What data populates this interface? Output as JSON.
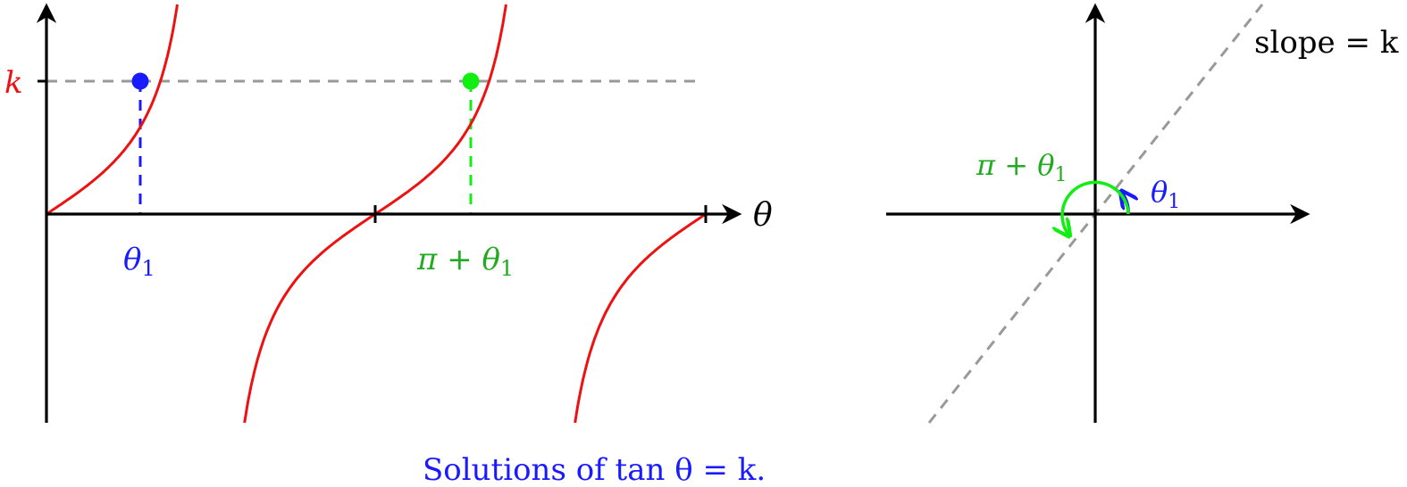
{
  "colors": {
    "axis": "#000000",
    "curve": "#ee1111",
    "dashed_gray": "#999999",
    "blue": "#1a1aff",
    "green": "#11ee11",
    "green_text": "#22aa22",
    "k_label": "#ee1111"
  },
  "left_plot": {
    "k_label": "k",
    "theta_axis_label": "θ",
    "theta1_label": "θ",
    "theta1_sub": "1",
    "pi_theta1_label": "π + θ",
    "pi_theta1_sub": "1"
  },
  "right_plot": {
    "slope_label": "slope = k",
    "pi_theta1_label": "π + θ",
    "pi_theta1_sub": "1",
    "theta1_label": "θ",
    "theta1_sub": "1"
  },
  "caption": "Solutions of tan θ = k."
}
